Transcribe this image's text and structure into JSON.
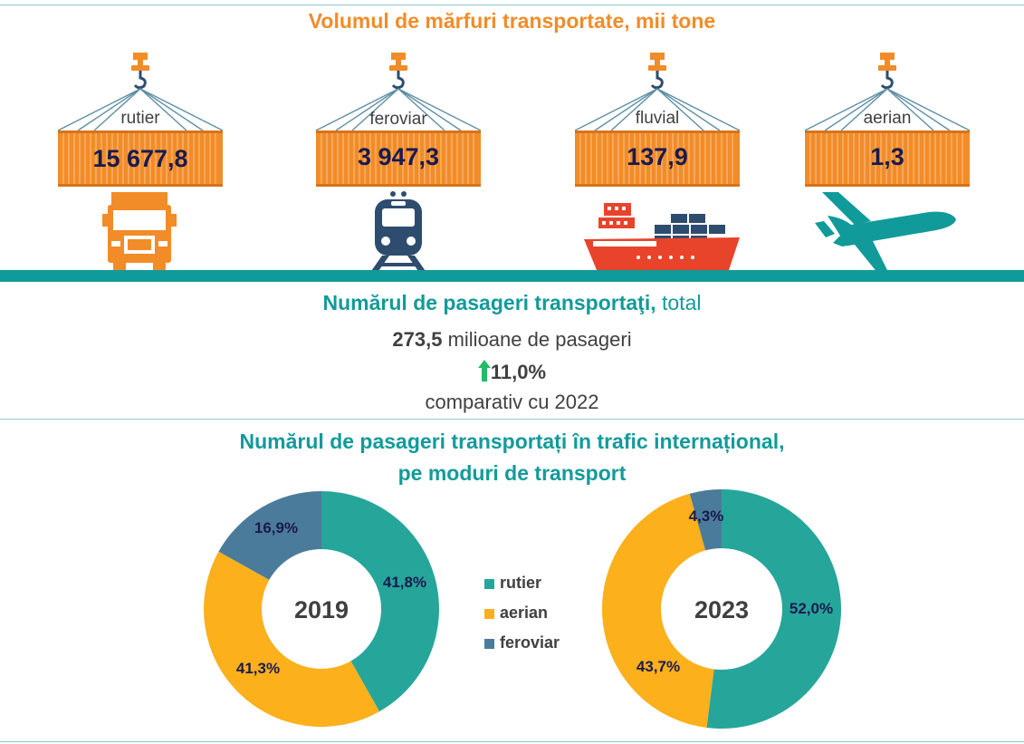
{
  "freight": {
    "title": "Volumul de mărfuri transportate, mii tone",
    "modes": [
      {
        "label": "rutier",
        "value": "15 677,8",
        "icon": "truck-icon"
      },
      {
        "label": "feroviar",
        "value": "3 947,3",
        "icon": "train-icon"
      },
      {
        "label": "fluvial",
        "value": "137,9",
        "icon": "ship-icon"
      },
      {
        "label": "aerian",
        "value": "1,3",
        "icon": "airplane-icon"
      }
    ]
  },
  "passengers": {
    "title_bold": "Numărul de pasageri transportaţi,",
    "title_regular": "total",
    "total_value": "273,5",
    "total_unit": "milioane de pasageri",
    "change": "11,0%",
    "change_direction": "up",
    "comparison": "comparativ cu 2022"
  },
  "international": {
    "title_line1": "Numărul de pasageri transportați în trafic internațional,",
    "title_line2": "pe moduri de transport"
  },
  "colors": {
    "accent_orange": "#f28c28",
    "teal": "#139a9a",
    "rutier": "#26a69a",
    "aerian": "#fbb01c",
    "feroviar": "#4b7b9b",
    "arrow_up": "#22bb66"
  },
  "chart_data": [
    {
      "type": "pie",
      "center_label": "2019",
      "categories": [
        "rutier",
        "aerian",
        "feroviar"
      ],
      "values": [
        41.8,
        41.3,
        16.9
      ],
      "data_labels": [
        "41,8%",
        "41,3%",
        "16,9%"
      ],
      "legend_placement": "right"
    },
    {
      "type": "pie",
      "center_label": "2023",
      "categories": [
        "rutier",
        "aerian",
        "feroviar"
      ],
      "values": [
        52.0,
        43.7,
        4.3
      ],
      "data_labels": [
        "52,0%",
        "43,7%",
        "4,3%"
      ],
      "legend_placement": "left"
    }
  ],
  "legend": [
    {
      "label": "rutier",
      "color": "#26a69a"
    },
    {
      "label": "aerian",
      "color": "#fbb01c"
    },
    {
      "label": "feroviar",
      "color": "#4b7b9b"
    }
  ]
}
